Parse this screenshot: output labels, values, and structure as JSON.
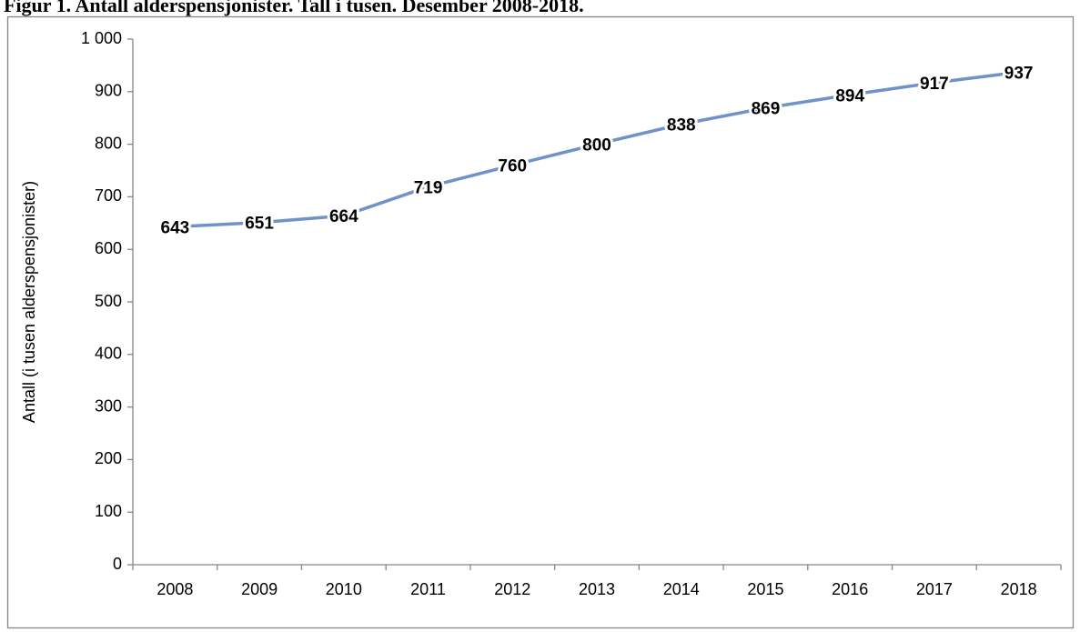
{
  "chart_data": {
    "type": "line",
    "title": "Figur 1. Antall alderspensjonister. Tall i tusen. Desember 2008-2018.",
    "y_label": "Antall (i tusen alderspensjonister)",
    "categories": [
      "2008",
      "2009",
      "2010",
      "2011",
      "2012",
      "2013",
      "2014",
      "2015",
      "2016",
      "2017",
      "2018"
    ],
    "series": [
      {
        "name": "Alderspensjonister",
        "color": "#6f93c8",
        "values": [
          643,
          651,
          664,
          719,
          760,
          800,
          838,
          869,
          894,
          917,
          937
        ]
      }
    ],
    "ylim": [
      0,
      1000
    ],
    "yticks": [
      0,
      100,
      200,
      300,
      400,
      500,
      600,
      700,
      800,
      900,
      {
        "value": 1000,
        "label": "1 000"
      }
    ],
    "grid": false
  }
}
